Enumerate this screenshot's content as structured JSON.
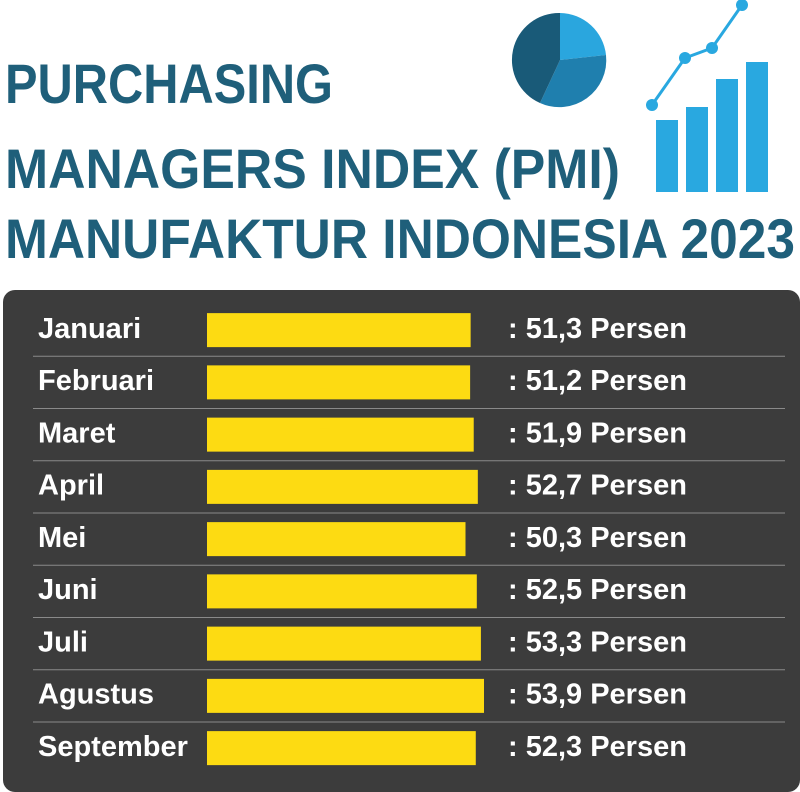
{
  "chart_data": {
    "type": "bar",
    "title": [
      "PURCHASING",
      "MANAGERS INDEX (PMI)",
      "MANUFAKTUR INDONESIA 2023"
    ],
    "categories": [
      "Januari",
      "Februari",
      "Maret",
      "April",
      "Mei",
      "Juni",
      "Juli",
      "Agustus",
      "September"
    ],
    "values": [
      51.3,
      51.2,
      51.9,
      52.7,
      50.3,
      52.5,
      53.3,
      53.9,
      52.3
    ],
    "value_labels": [
      ": 51,3 Persen",
      ": 51,2 Persen",
      ": 51,9 Persen",
      ": 52,7 Persen",
      ": 50,3 Persen",
      ": 52,5 Persen",
      ": 53,3 Persen",
      ": 53,9 Persen",
      ": 52,3 Persen"
    ],
    "color": "#fddb12"
  }
}
